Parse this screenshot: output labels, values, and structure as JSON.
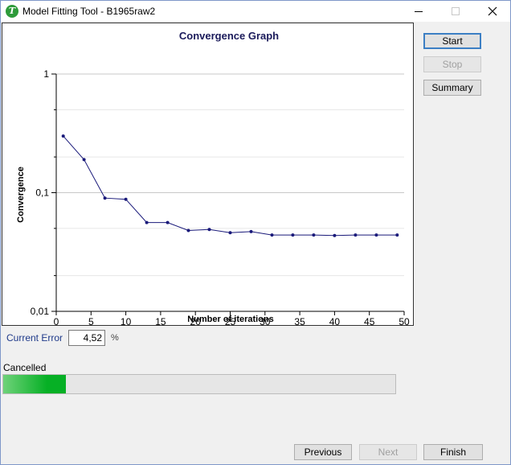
{
  "window": {
    "title": "Model Fitting Tool - B1965raw2",
    "icon_letter": "T"
  },
  "buttons": {
    "start": "Start",
    "stop": "Stop",
    "summary": "Summary",
    "previous": "Previous",
    "next": "Next",
    "finish": "Finish"
  },
  "current_error": {
    "label": "Current Error",
    "value": "4,52",
    "unit": "%"
  },
  "status": {
    "label": "Cancelled",
    "progress_fraction": 0.16
  },
  "colors": {
    "series": "#1a1a7a",
    "progress": "#06b025",
    "primary_border": "#3c7fc4"
  },
  "chart_data": {
    "type": "line",
    "title": "Convergence Graph",
    "xlabel": "Number of iterations",
    "ylabel": "Convergence",
    "xlim": [
      0,
      50
    ],
    "ylim": [
      0.01,
      1
    ],
    "yscale": "log",
    "x_ticks": [
      0,
      5,
      10,
      15,
      20,
      25,
      30,
      35,
      40,
      45,
      50
    ],
    "y_ticks": [
      {
        "value": 1,
        "label": "1"
      },
      {
        "value": 0.1,
        "label": "0,1"
      },
      {
        "value": 0.01,
        "label": "0,01"
      }
    ],
    "grid": true,
    "series": [
      {
        "x": [
          1,
          4,
          7,
          10,
          13,
          16,
          19,
          22,
          25,
          28,
          31,
          34,
          37,
          40,
          43,
          46,
          49
        ],
        "y": [
          0.3,
          0.19,
          0.09,
          0.088,
          0.056,
          0.056,
          0.048,
          0.049,
          0.046,
          0.047,
          0.044,
          0.044,
          0.044,
          0.0435,
          0.044,
          0.044,
          0.044
        ]
      }
    ]
  }
}
